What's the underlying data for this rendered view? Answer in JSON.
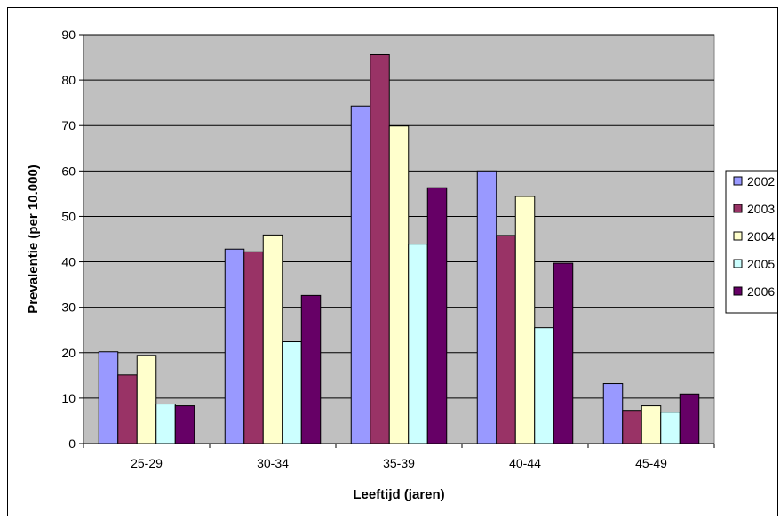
{
  "chart_data": {
    "type": "bar",
    "title": "",
    "xlabel": "Leeftijd (jaren)",
    "ylabel": "Prevalentie (per 10.000)",
    "categories": [
      "25-29",
      "30-34",
      "35-39",
      "40-44",
      "45-49"
    ],
    "ylim": [
      0,
      90
    ],
    "yticks": [
      0,
      10,
      20,
      30,
      40,
      50,
      60,
      70,
      80,
      90
    ],
    "grid": true,
    "legend_position": "right",
    "plot_background": "#c0c0c0",
    "series": [
      {
        "name": "2002",
        "color": "#9999ff",
        "values": [
          20.2,
          42.8,
          74.3,
          60.0,
          13.2
        ]
      },
      {
        "name": "2003",
        "color": "#993366",
        "values": [
          15.1,
          42.2,
          85.6,
          45.8,
          7.3
        ]
      },
      {
        "name": "2004",
        "color": "#ffffcc",
        "values": [
          19.4,
          45.9,
          69.9,
          54.4,
          8.3
        ]
      },
      {
        "name": "2005",
        "color": "#ccffff",
        "values": [
          8.7,
          22.4,
          43.9,
          25.5,
          6.9
        ]
      },
      {
        "name": "2006",
        "color": "#660066",
        "values": [
          8.3,
          32.6,
          56.3,
          39.7,
          10.9
        ]
      }
    ]
  }
}
